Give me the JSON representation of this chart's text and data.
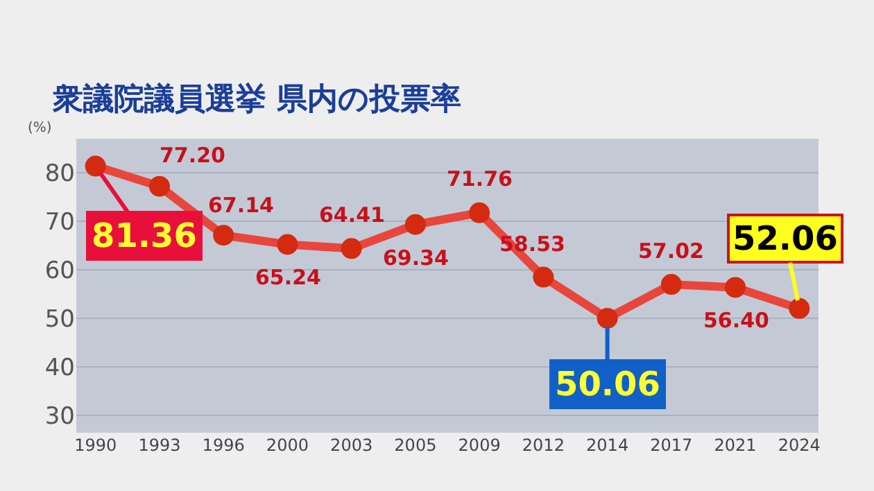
{
  "chart_data": {
    "type": "line",
    "title": "衆議院議員選挙 県内の投票率",
    "ylabel": "(%)",
    "categories": [
      "1990",
      "1993",
      "1996",
      "2000",
      "2003",
      "2005",
      "2009",
      "2012",
      "2014",
      "2017",
      "2021",
      "2024"
    ],
    "series": [
      {
        "color": "#e8463c",
        "values": [
          81.36,
          77.2,
          67.14,
          65.24,
          64.41,
          69.34,
          71.76,
          58.53,
          50.06,
          57.02,
          56.4,
          52.06
        ]
      }
    ],
    "ylim": [
      26.5,
      87
    ],
    "yticks": [
      30,
      40,
      50,
      60,
      70,
      80
    ],
    "grid": "y",
    "marker": "circle",
    "line_style": "solid",
    "value_labels": [
      "81.36",
      "77.20",
      "67.14",
      "65.24",
      "64.41",
      "69.34",
      "71.76",
      "58.53",
      "50.06",
      "57.02",
      "56.40",
      "52.06"
    ],
    "legend": false
  }
}
